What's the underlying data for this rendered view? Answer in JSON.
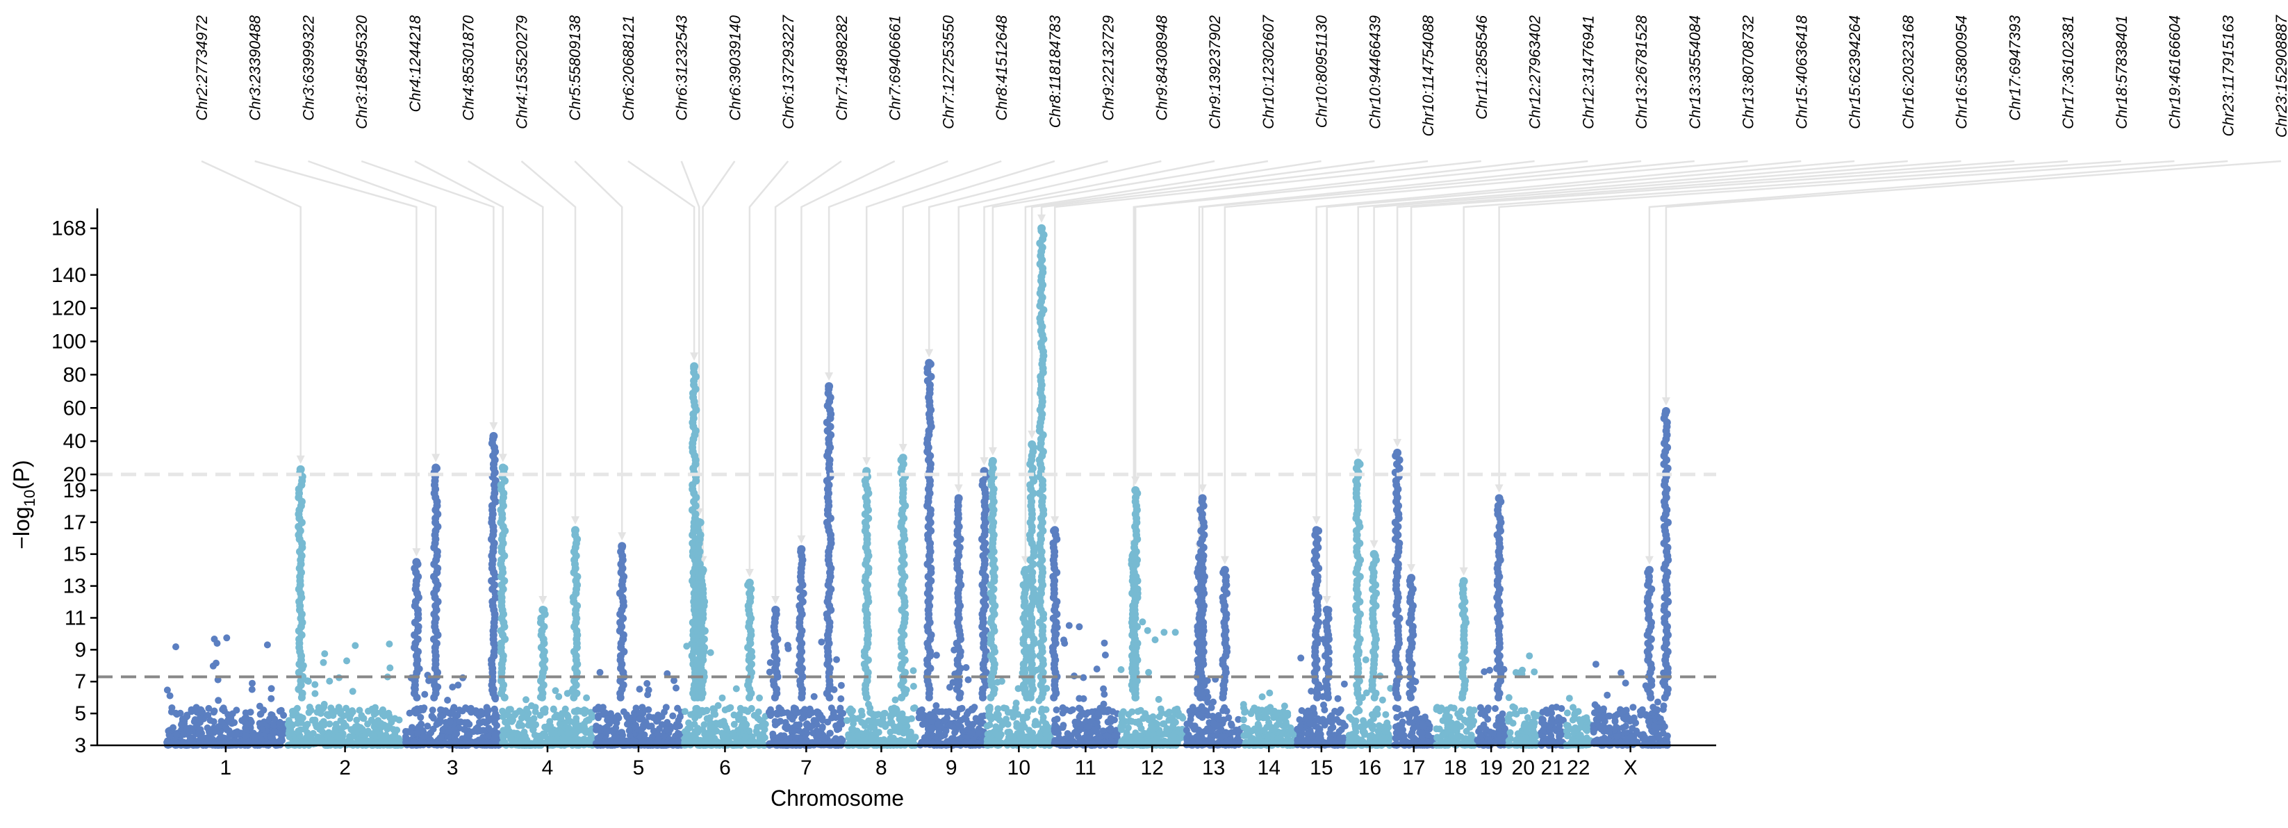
{
  "chart_data": {
    "type": "scatter",
    "subtype": "manhattan",
    "xlabel": "Chromosome",
    "ylabel": "−log10(P)",
    "ylabel_main": "−log",
    "ylabel_sub": "10",
    "ylabel_tail": "(P)",
    "lower_ticks": [
      3,
      5,
      7,
      9,
      11,
      13,
      15,
      17,
      19
    ],
    "upper_ticks": [
      20,
      40,
      60,
      80,
      100,
      120,
      140,
      168
    ],
    "lower_range": [
      3,
      20
    ],
    "upper_range": [
      20,
      180
    ],
    "genome_wide_threshold": 7.3,
    "break_line_value": 20,
    "colors": {
      "dark": "#5b7fc1",
      "light": "#77bad2",
      "threshold": "#888888",
      "break": "#e6e6e6",
      "annotation": "#e3e3e3"
    },
    "chromosomes": [
      {
        "label": "1",
        "size": 248
      },
      {
        "label": "2",
        "size": 242
      },
      {
        "label": "3",
        "size": 198
      },
      {
        "label": "4",
        "size": 190
      },
      {
        "label": "5",
        "size": 181
      },
      {
        "label": "6",
        "size": 171
      },
      {
        "label": "7",
        "size": 159
      },
      {
        "label": "8",
        "size": 145
      },
      {
        "label": "9",
        "size": 138
      },
      {
        "label": "10",
        "size": 134
      },
      {
        "label": "11",
        "size": 135
      },
      {
        "label": "12",
        "size": 133
      },
      {
        "label": "13",
        "size": 114
      },
      {
        "label": "14",
        "size": 107
      },
      {
        "label": "15",
        "size": 102
      },
      {
        "label": "16",
        "size": 90
      },
      {
        "label": "17",
        "size": 83
      },
      {
        "label": "18",
        "size": 80
      },
      {
        "label": "19",
        "size": 59
      },
      {
        "label": "20",
        "size": 64
      },
      {
        "label": "21",
        "size": 47
      },
      {
        "label": "22",
        "size": 51
      },
      {
        "label": "X",
        "size": 156
      }
    ],
    "peaks": [
      {
        "label": "Chr2:27734972",
        "chr": "2",
        "pos": 27.7,
        "logp": 23
      },
      {
        "label": "Chr3:23390488",
        "chr": "3",
        "pos": 23.4,
        "logp": 14.5
      },
      {
        "label": "Chr3:63999322",
        "chr": "3",
        "pos": 64.0,
        "logp": 24
      },
      {
        "label": "Chr3:185495320",
        "chr": "3",
        "pos": 185.5,
        "logp": 43
      },
      {
        "label": "Chr4:1244218",
        "chr": "4",
        "pos": 1.2,
        "logp": 24
      },
      {
        "label": "Chr4:85301870",
        "chr": "4",
        "pos": 85.3,
        "logp": 11.5
      },
      {
        "label": "Chr4:153520279",
        "chr": "4",
        "pos": 153.5,
        "logp": 16.5
      },
      {
        "label": "Chr5:55809138",
        "chr": "5",
        "pos": 55.8,
        "logp": 15.5
      },
      {
        "label": "Chr6:20688121",
        "chr": "6",
        "pos": 20.7,
        "logp": 85
      },
      {
        "label": "Chr6:31232543",
        "chr": "6",
        "pos": 31.2,
        "logp": 17
      },
      {
        "label": "Chr6:39039140",
        "chr": "6",
        "pos": 39.0,
        "logp": 14
      },
      {
        "label": "Chr6:137293227",
        "chr": "6",
        "pos": 137.3,
        "logp": 13.2
      },
      {
        "label": "Chr7:14898282",
        "chr": "7",
        "pos": 14.9,
        "logp": 11.5
      },
      {
        "label": "Chr7:69406661",
        "chr": "7",
        "pos": 69.4,
        "logp": 15.3
      },
      {
        "label": "Chr7:127253550",
        "chr": "7",
        "pos": 127.3,
        "logp": 73
      },
      {
        "label": "Chr8:41512648",
        "chr": "8",
        "pos": 41.5,
        "logp": 22
      },
      {
        "label": "Chr8:118184783",
        "chr": "8",
        "pos": 118.2,
        "logp": 30
      },
      {
        "label": "Chr9:22132729",
        "chr": "9",
        "pos": 22.1,
        "logp": 87
      },
      {
        "label": "Chr9:84308948",
        "chr": "9",
        "pos": 84.3,
        "logp": 18.5
      },
      {
        "label": "Chr9:139237902",
        "chr": "9",
        "pos": 139.2,
        "logp": 22
      },
      {
        "label": "Chr10:12302607",
        "chr": "10",
        "pos": 12.3,
        "logp": 28
      },
      {
        "label": "Chr10:80951130",
        "chr": "10",
        "pos": 81.0,
        "logp": 14
      },
      {
        "label": "Chr10:94466439",
        "chr": "10",
        "pos": 94.5,
        "logp": 38
      },
      {
        "label": "Chr10:114754088",
        "chr": "10",
        "pos": 114.8,
        "logp": 168
      },
      {
        "label": "Chr11:2858546",
        "chr": "11",
        "pos": 2.9,
        "logp": 16.5
      },
      {
        "label": "Chr12:27963402",
        "chr": "12",
        "pos": 28.0,
        "logp": 15
      },
      {
        "label": "Chr12:31476941",
        "chr": "12",
        "pos": 31.5,
        "logp": 19
      },
      {
        "label": "Chr13:26781528",
        "chr": "13",
        "pos": 26.8,
        "logp": 14.8
      },
      {
        "label": "Chr13:33554084",
        "chr": "13",
        "pos": 33.6,
        "logp": 18.5
      },
      {
        "label": "Chr13:80708732",
        "chr": "13",
        "pos": 80.7,
        "logp": 14
      },
      {
        "label": "Chr15:40636418",
        "chr": "15",
        "pos": 40.6,
        "logp": 16.5
      },
      {
        "label": "Chr15:62394264",
        "chr": "15",
        "pos": 62.4,
        "logp": 11.5
      },
      {
        "label": "Chr16:20323168",
        "chr": "16",
        "pos": 20.3,
        "logp": 27
      },
      {
        "label": "Chr16:53800954",
        "chr": "16",
        "pos": 53.8,
        "logp": 15
      },
      {
        "label": "Chr17:6947393",
        "chr": "17",
        "pos": 6.9,
        "logp": 33
      },
      {
        "label": "Chr17:36102381",
        "chr": "17",
        "pos": 36.1,
        "logp": 13.5
      },
      {
        "label": "Chr18:57838401",
        "chr": "18",
        "pos": 57.8,
        "logp": 13.3
      },
      {
        "label": "Chr19:46166604",
        "chr": "19",
        "pos": 46.2,
        "logp": 18.5
      },
      {
        "label": "Chr23:117915163",
        "chr": "X",
        "pos": 117.9,
        "logp": 14
      },
      {
        "label": "Chr23:152908887",
        "chr": "X",
        "pos": 152.9,
        "logp": 58
      }
    ],
    "background_max": [
      10.5,
      9.5,
      8.3,
      8.7,
      8.2,
      9.5,
      10.2,
      7.9,
      11,
      9,
      10.7,
      11.2,
      8.1,
      6.5,
      10,
      9,
      8.9,
      5.9,
      7.9,
      8.8,
      4.7,
      6.5,
      8.3
    ]
  }
}
